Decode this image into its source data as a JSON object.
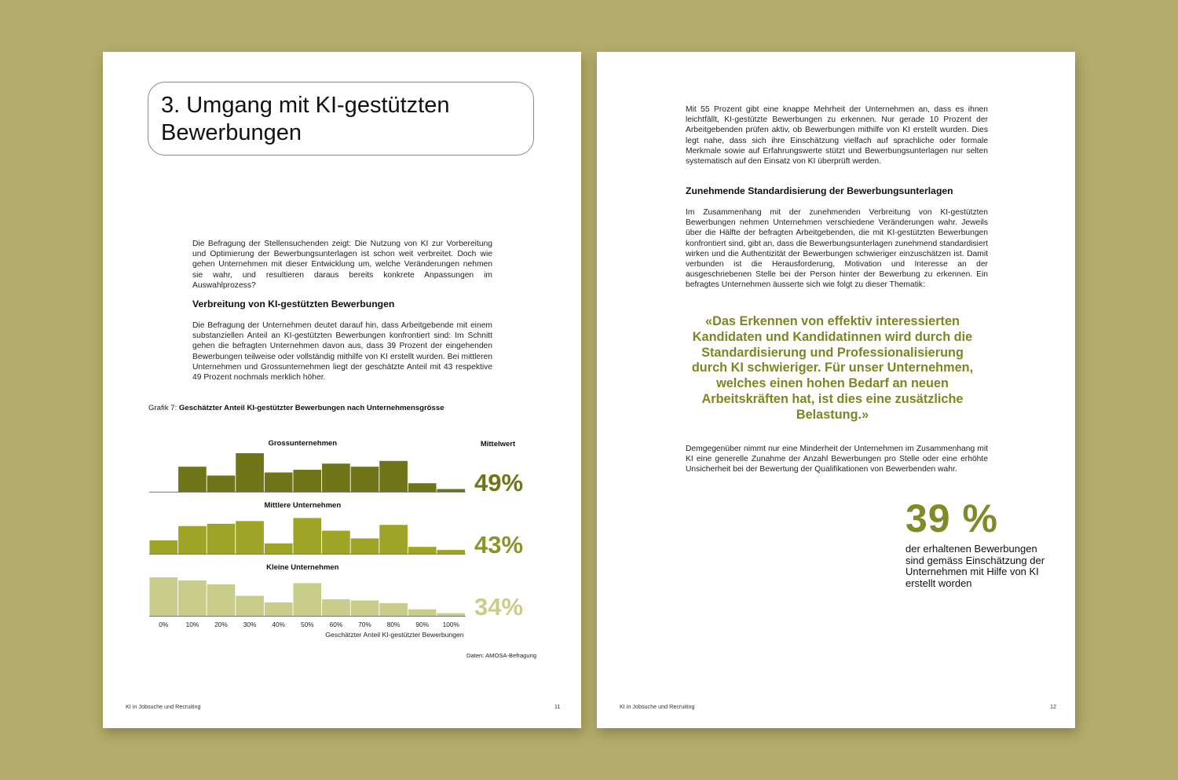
{
  "left_page": {
    "title": "3. Umgang mit KI-gestützten Bewerbungen",
    "intro": "Die Befragung der Stellensuchenden zeigt: Die Nutzung von KI zur Vorbereitung und Optimierung der Bewerbungsunterlagen ist schon weit verbreitet. Doch wie gehen Unternehmen mit dieser Entwicklung um, welche Veränderungen nehmen sie wahr, und resultieren daraus bereits konkrete Anpassungen im Auswahlprozess?",
    "section_heading": "Verbreitung von KI-gestützten Bewerbungen",
    "section_text": "Die Befragung der Unternehmen deutet darauf hin, dass Arbeitgebende mit einem substanziellen Anteil an KI-gestützten Bewerbungen konfrontiert sind: Im Schnitt gehen die befragten Unternehmen davon aus, dass 39 Prozent der eingehenden Bewerbungen teilweise oder vollständig mithilfe von KI erstellt wurden. Bei mittleren Unternehmen und Grossunternehmen liegt der geschätzte Anteil mit 43 respektive 49 Prozent nochmals merklich höher.",
    "figure_prefix": "Grafik 7: ",
    "figure_title": "Geschätzter Anteil KI-gestützter Bewerbungen nach Unternehmensgrösse",
    "source": "Daten: AMOSA-Befragung",
    "footer_left": "KI in Jobsuche und Recruiting",
    "page_number": "11"
  },
  "right_page": {
    "para1": "Mit 55 Prozent gibt eine knappe Mehrheit der Unternehmen an, dass es ihnen leichtfällt, KI-gestützte Bewerbungen zu erkennen. Nur gerade 10 Prozent der Arbeitgebenden prüfen aktiv, ob Bewerbungen mithilfe von KI erstellt wurden. Dies legt nahe, dass sich ihre Einschätzung vielfach auf sprachliche oder formale Merkmale sowie auf Erfahrungswerte stützt und Bewerbungsunterlagen nur selten systematisch auf den Einsatz von KI überprüft werden.",
    "heading": "Zunehmende Standardisierung der Bewerbungsunterlagen",
    "para2": "Im Zusammenhang mit der zunehmenden Verbreitung von KI-gestützten Bewerbungen nehmen Unternehmen verschiedene Veränderungen wahr. Jeweils über die Hälfte der befragten Arbeitgebenden, die mit KI-gestützten Bewerbungen konfrontiert sind, gibt an, dass die Bewerbungsunterlagen zunehmend standardisiert wirken und die Authentizität der Bewerbungen schwieriger einzuschätzen ist. Damit verbunden ist die Herausforderung, Motivation und Interesse an der ausgeschriebenen Stelle bei der Person hinter der Bewerbung zu erkennen. Ein befragtes Unternehmen äusserte sich wie folgt zu dieser Thematik:",
    "quote": "«Das Erkennen von effektiv interessierten Kandidaten und Kandidatinnen wird durch die Standardisierung und Professionalisierung durch KI schwieriger. Für unser Unternehmen, welches einen hohen Bedarf an neuen Arbeitskräften hat, ist dies eine zusätzliche Belastung.»",
    "para3": "Demgegenüber nimmt nur eine Minderheit der Unternehmen im Zusammenhang mit KI eine generelle Zunahme der Anzahl Bewerbungen pro Stelle oder eine erhöhte Unsicherheit bei der Bewertung der Qualifikationen von Bewerbenden wahr.",
    "big_stat": "39 %",
    "stat_desc": "der erhaltenen Bewerbungen sind gemäss Einschätzung der Unternehmen mit Hilfe von KI erstellt worden",
    "footer_left": "KI in Jobsuche und Recruiting",
    "page_number": "12"
  },
  "chart_data": {
    "type": "bar",
    "mean_header": "Mittelwert",
    "xlabel": "Geschätzter Anteil KI-gestützter Bewerbungen",
    "categories": [
      "0%",
      "10%",
      "20%",
      "30%",
      "40%",
      "50%",
      "60%",
      "70%",
      "80%",
      "90%",
      "100%"
    ],
    "ylim": [
      0,
      1
    ],
    "series": [
      {
        "name": "Grossunternehmen",
        "mean": "49%",
        "color": "#6f7419",
        "values": [
          0.0,
          0.65,
          0.42,
          1.0,
          0.5,
          0.57,
          0.73,
          0.65,
          0.8,
          0.22,
          0.07
        ]
      },
      {
        "name": "Mittlere Unternehmen",
        "mean": "43%",
        "color": "#9da426",
        "values": [
          0.35,
          0.72,
          0.78,
          0.85,
          0.27,
          0.93,
          0.6,
          0.4,
          0.75,
          0.18,
          0.1
        ]
      },
      {
        "name": "Kleine Unternehmen",
        "mean": "34%",
        "color": "#c9cd8a",
        "values": [
          1.0,
          0.92,
          0.82,
          0.52,
          0.35,
          0.85,
          0.43,
          0.4,
          0.33,
          0.17,
          0.07
        ]
      }
    ]
  },
  "colors": {
    "background": "#b3ac6a",
    "accent_olive": "#7e8622",
    "mean_text_large": "#6f7419",
    "mean_text_mid": "#8c9327",
    "mean_text_small": "#c9cd8a"
  }
}
